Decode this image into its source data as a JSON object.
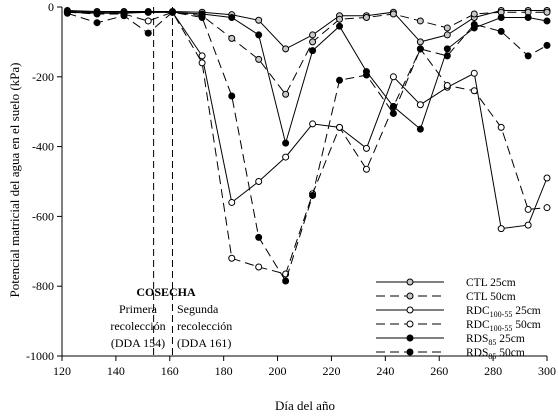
{
  "chart_data": {
    "type": "line",
    "title": "",
    "xlabel": "Día del año",
    "ylabel": "Potencial matricial del agua en el suelo (kPa)",
    "xlim": [
      120,
      300
    ],
    "ylim": [
      -1000,
      0
    ],
    "xticks": [
      120,
      140,
      160,
      180,
      200,
      220,
      240,
      260,
      280,
      300
    ],
    "yticks": [
      0,
      -200,
      -400,
      -600,
      -800,
      -1000
    ],
    "grid": false,
    "legend_position": "bottom-right",
    "series": [
      {
        "name": "CTL 25cm",
        "label_main": "CTL",
        "label_sub": "",
        "label_depth": " 25cm",
        "marker": "open",
        "markerFill": "#c8c8c8",
        "dash": "solid",
        "x": [
          122,
          133,
          143,
          152,
          161,
          172,
          183,
          193,
          203,
          213,
          223,
          233,
          243,
          253,
          263,
          273,
          283,
          293,
          300
        ],
        "y": [
          -10,
          -13,
          -13,
          -13,
          -13,
          -15,
          -22,
          -38,
          -120,
          -80,
          -25,
          -25,
          -15,
          -100,
          -80,
          -30,
          -10,
          -10,
          -10
        ]
      },
      {
        "name": "CTL 50cm",
        "label_main": "CTL",
        "label_sub": "",
        "label_depth": " 50cm",
        "marker": "open",
        "markerFill": "#c8c8c8",
        "dash": "dashed",
        "x": [
          122,
          133,
          143,
          152,
          161,
          172,
          183,
          193,
          203,
          213,
          223,
          233,
          243,
          253,
          263,
          273,
          283,
          293,
          300
        ],
        "y": [
          -13,
          -15,
          -15,
          -15,
          -15,
          -25,
          -90,
          -150,
          -250,
          -100,
          -35,
          -30,
          -20,
          -40,
          -60,
          -20,
          -15,
          -15,
          -15
        ]
      },
      {
        "name": "RDC100-55 25cm",
        "label_main": "RDC",
        "label_sub": "100-55",
        "label_depth": " 25cm",
        "marker": "open",
        "markerFill": "#ffffff",
        "dash": "solid",
        "x": [
          122,
          133,
          143,
          152,
          161,
          172,
          183,
          193,
          203,
          213,
          223,
          233,
          243,
          253,
          263,
          273,
          283,
          293,
          300
        ],
        "y": [
          -13,
          -15,
          -15,
          -15,
          -15,
          -140,
          -560,
          -500,
          -430,
          -335,
          -345,
          -405,
          -200,
          -280,
          -230,
          -190,
          -635,
          -625,
          -490
        ]
      },
      {
        "name": "RDC100-55 50cm",
        "label_main": "RDC",
        "label_sub": "100-55",
        "label_depth": " 50cm",
        "marker": "open",
        "markerFill": "#ffffff",
        "dash": "dashed",
        "x": [
          122,
          133,
          143,
          152,
          161,
          172,
          183,
          193,
          203,
          213,
          223,
          233,
          243,
          253,
          263,
          273,
          283,
          293,
          300
        ],
        "y": [
          -15,
          -20,
          -20,
          -40,
          -15,
          -160,
          -720,
          -745,
          -765,
          -535,
          -345,
          -465,
          -285,
          -120,
          -225,
          -240,
          -345,
          -580,
          -575
        ]
      },
      {
        "name": "RDS85 25cm",
        "label_main": "RDS",
        "label_sub": "85",
        "label_depth": " 25cm",
        "marker": "filled",
        "markerFill": "#000000",
        "dash": "solid",
        "x": [
          122,
          133,
          143,
          152,
          161,
          172,
          183,
          193,
          203,
          213,
          223,
          233,
          243,
          253,
          263,
          273,
          283,
          293,
          300
        ],
        "y": [
          -15,
          -18,
          -18,
          -15,
          -15,
          -20,
          -30,
          -80,
          -390,
          -125,
          -55,
          -185,
          -285,
          -350,
          -120,
          -60,
          -30,
          -30,
          -40
        ]
      },
      {
        "name": "RDS85 50cm",
        "label_main": "RDS",
        "label_sub": "85",
        "label_depth": " 50cm",
        "marker": "filled",
        "markerFill": "#000000",
        "dash": "dashed",
        "x": [
          122,
          133,
          143,
          152,
          161,
          172,
          183,
          193,
          203,
          213,
          223,
          233,
          243,
          253,
          263,
          273,
          283,
          293,
          300
        ],
        "y": [
          -18,
          -45,
          -25,
          -75,
          -15,
          -30,
          -255,
          -660,
          -785,
          -540,
          -210,
          -195,
          -305,
          -120,
          -140,
          -50,
          -70,
          -140,
          -110
        ]
      }
    ],
    "annotations": {
      "harvest_title": "COSECHA",
      "first_line1": "Primera",
      "first_line2": "recolección",
      "first_line3": "(DDA 154)",
      "second_line1": "Segunda",
      "second_line2": "recolección",
      "second_line3": "(DDA 161)",
      "harvest_days": [
        154,
        161
      ]
    }
  }
}
